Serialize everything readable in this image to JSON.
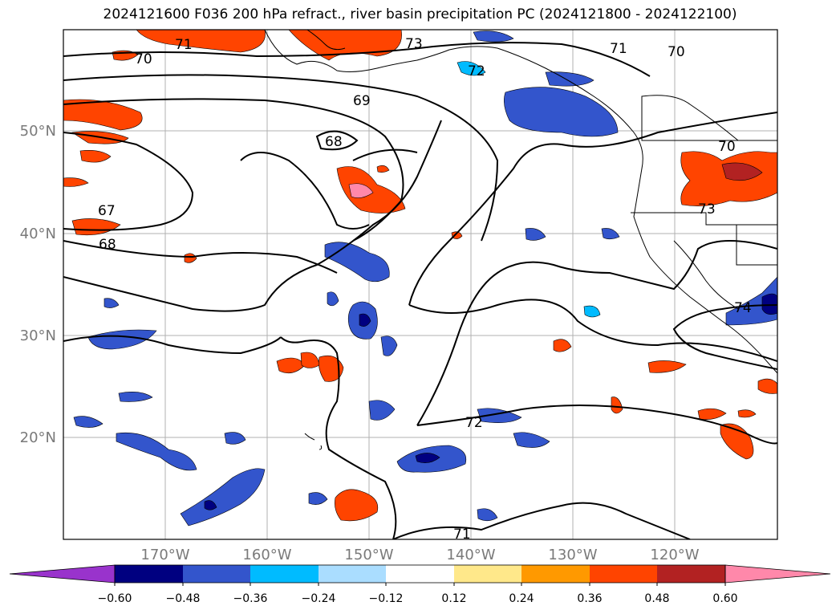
{
  "title": "2024121600 F036 200 hPa refract., river basin precipitation PC (2024121800 - 2024122100)",
  "map": {
    "lon_labels": [
      "170°W",
      "160°W",
      "150°W",
      "140°W",
      "130°W",
      "120°W"
    ],
    "lat_labels": [
      "50°N",
      "40°N",
      "30°N",
      "20°N"
    ],
    "contour_labels": [
      "71",
      "70",
      "73",
      "72",
      "71",
      "70",
      "69",
      "68",
      "67",
      "68",
      "70",
      "73",
      "74",
      "72",
      "71"
    ],
    "land_color": "#ffffff",
    "contour_color": "#000000",
    "grid_color": "#b0b0b0"
  },
  "colorbar": {
    "ticks": [
      "−0.60",
      "−0.48",
      "−0.36",
      "−0.24",
      "−0.12",
      "0.12",
      "0.24",
      "0.36",
      "0.48",
      "0.60"
    ],
    "colors": [
      "#9933cc",
      "#000080",
      "#3355cc",
      "#00bbff",
      "#aaddff",
      "#ffffff",
      "#ffe88a",
      "#ff9900",
      "#ff4400",
      "#b22222",
      "#ff88aa"
    ]
  }
}
